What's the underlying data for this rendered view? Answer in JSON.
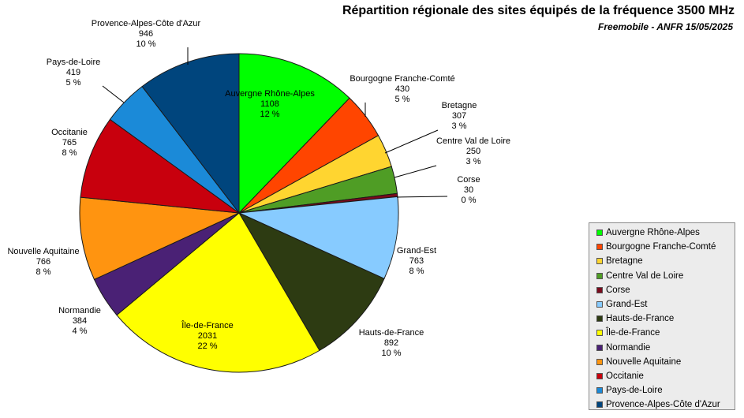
{
  "chart_data": {
    "type": "pie",
    "title": "Répartition régionale des sites équipés de la fréquence 3500 MHz",
    "subtitle": "Freemobile - ANFR 15/05/2025",
    "legend_position": "bottom-right",
    "slices": [
      {
        "name": "Auvergne Rhône-Alpes",
        "value": 1108,
        "percent": "12 %",
        "color": "#00ff00"
      },
      {
        "name": "Bourgogne Franche-Comté",
        "value": 430,
        "percent": "5 %",
        "color": "#ff4500"
      },
      {
        "name": "Bretagne",
        "value": 307,
        "percent": "3 %",
        "color": "#ffd530"
      },
      {
        "name": "Centre Val de Loire",
        "value": 250,
        "percent": "3 %",
        "color": "#4f9d25"
      },
      {
        "name": "Corse",
        "value": 30,
        "percent": "0 %",
        "color": "#7a0a1c"
      },
      {
        "name": "Grand-Est",
        "value": 763,
        "percent": "8 %",
        "color": "#87cbff"
      },
      {
        "name": "Hauts-de-France",
        "value": 892,
        "percent": "10 %",
        "color": "#2d3b12"
      },
      {
        "name": "Île-de-France",
        "value": 2031,
        "percent": "22 %",
        "color": "#ffff00"
      },
      {
        "name": "Normandie",
        "value": 384,
        "percent": "4 %",
        "color": "#4a2175"
      },
      {
        "name": "Nouvelle Aquitaine",
        "value": 766,
        "percent": "8 %",
        "color": "#ff9410"
      },
      {
        "name": "Occitanie",
        "value": 765,
        "percent": "8 %",
        "color": "#c8000d"
      },
      {
        "name": "Pays-de-Loire",
        "value": 419,
        "percent": "5 %",
        "color": "#1b8ad8"
      },
      {
        "name": "Provence-Alpes-Côte d'Azur",
        "value": 946,
        "percent": "10 %",
        "color": "#00457d"
      }
    ]
  }
}
